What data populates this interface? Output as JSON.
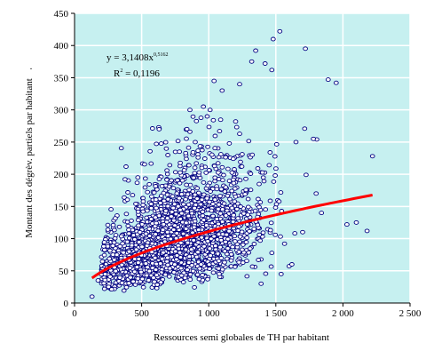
{
  "chart_data": {
    "type": "scatter",
    "title": "",
    "xlabel": "Ressources semi globales de TH par habitant",
    "ylabel": "Montant des dégrèv. partiels par habitant",
    "xlim": [
      0,
      2500
    ],
    "ylim": [
      0,
      450
    ],
    "xticks": [
      0,
      500,
      1000,
      1500,
      2000,
      2500
    ],
    "yticks": [
      0,
      50,
      100,
      150,
      200,
      250,
      300,
      350,
      400,
      450
    ],
    "xtick_labels": [
      "0",
      "500",
      "1 000",
      "1 500",
      "2 000",
      "2 500"
    ],
    "ytick_labels": [
      "0",
      "50",
      "100",
      "150",
      "200",
      "250",
      "300",
      "350",
      "400",
      "450"
    ],
    "grid": "major gridlines on both axes",
    "plot_background": "#c6f0f0",
    "gridline_color": "#ffffff",
    "marker_color": "#000080",
    "trendline_color": "#ff0000",
    "trendline": {
      "model": "power",
      "a": 3.1408,
      "b": 0.5162,
      "x_range": [
        130,
        2220
      ],
      "equation_prefix": "y = 3,1408x",
      "equation_exponent": "0,5162",
      "r2_prefix": "R",
      "r2_exponent": "2",
      "r2_value": " = 0,1196"
    },
    "highlighted_points": [
      {
        "x": 1530,
        "y": 422
      },
      {
        "x": 1480,
        "y": 410
      },
      {
        "x": 1720,
        "y": 395
      },
      {
        "x": 1350,
        "y": 392
      },
      {
        "x": 1890,
        "y": 347
      },
      {
        "x": 1950,
        "y": 342
      },
      {
        "x": 1100,
        "y": 330
      },
      {
        "x": 2220,
        "y": 228
      },
      {
        "x": 2100,
        "y": 125
      },
      {
        "x": 2030,
        "y": 122
      },
      {
        "x": 2180,
        "y": 112
      },
      {
        "x": 1650,
        "y": 250
      },
      {
        "x": 1780,
        "y": 255
      },
      {
        "x": 1420,
        "y": 372
      },
      {
        "x": 1320,
        "y": 375
      },
      {
        "x": 1470,
        "y": 362
      },
      {
        "x": 1040,
        "y": 345
      },
      {
        "x": 1230,
        "y": 340
      },
      {
        "x": 960,
        "y": 305
      },
      {
        "x": 1010,
        "y": 300
      },
      {
        "x": 860,
        "y": 300
      },
      {
        "x": 630,
        "y": 270
      },
      {
        "x": 130,
        "y": 10
      },
      {
        "x": 175,
        "y": 35
      },
      {
        "x": 1800,
        "y": 170
      },
      {
        "x": 1840,
        "y": 140
      },
      {
        "x": 1700,
        "y": 110
      },
      {
        "x": 1620,
        "y": 60
      },
      {
        "x": 1540,
        "y": 45
      },
      {
        "x": 1390,
        "y": 30
      }
    ],
    "cloud": {
      "description_points_count": 2500,
      "x_center": 750,
      "x_sigma": 300,
      "x_min": 200,
      "x_max": 1850,
      "y_median_at_mean": 100,
      "y_min": 18
    }
  }
}
